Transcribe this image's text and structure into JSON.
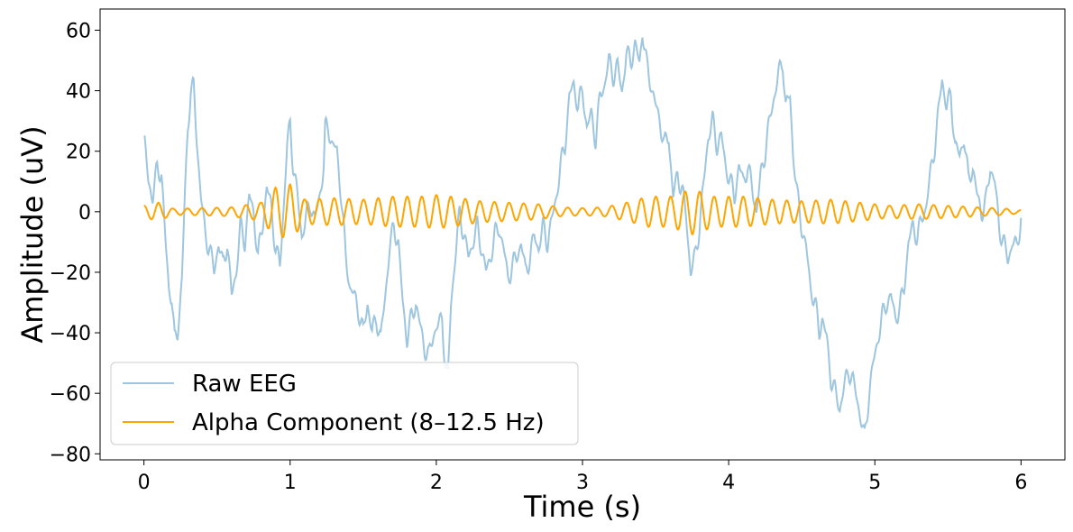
{
  "chart_data": {
    "type": "line",
    "xlabel": "Time (s)",
    "ylabel": "Amplitude (uV)",
    "xlim": [
      -0.3,
      6.3
    ],
    "ylim": [
      -82,
      67
    ],
    "xticks": [
      0,
      1,
      2,
      3,
      4,
      5,
      6
    ],
    "yticks": [
      -80,
      -60,
      -40,
      -20,
      0,
      20,
      40,
      60
    ],
    "xtick_labels": [
      "0",
      "1",
      "2",
      "3",
      "4",
      "5",
      "6"
    ],
    "ytick_labels": [
      "−80",
      "−60",
      "−40",
      "−20",
      "0",
      "20",
      "40",
      "60"
    ],
    "grid": false,
    "legend": {
      "position": "lower-left"
    },
    "series": [
      {
        "name": "Raw EEG",
        "color": "#9ec6df",
        "points": [
          [
            0.0,
            25
          ],
          [
            0.03,
            10
          ],
          [
            0.06,
            5
          ],
          [
            0.09,
            14
          ],
          [
            0.12,
            13
          ],
          [
            0.15,
            -12
          ],
          [
            0.17,
            -25
          ],
          [
            0.19,
            -28
          ],
          [
            0.21,
            -43
          ],
          [
            0.23,
            -40
          ],
          [
            0.26,
            -22
          ],
          [
            0.28,
            5
          ],
          [
            0.3,
            28
          ],
          [
            0.32,
            40
          ],
          [
            0.34,
            41
          ],
          [
            0.36,
            25
          ],
          [
            0.39,
            5
          ],
          [
            0.42,
            -8
          ],
          [
            0.45,
            -12
          ],
          [
            0.48,
            -20
          ],
          [
            0.51,
            -10
          ],
          [
            0.54,
            -18
          ],
          [
            0.57,
            -10
          ],
          [
            0.6,
            -28
          ],
          [
            0.63,
            -20
          ],
          [
            0.66,
            -5
          ],
          [
            0.69,
            -10
          ],
          [
            0.72,
            5
          ],
          [
            0.75,
            0
          ],
          [
            0.78,
            -15
          ],
          [
            0.81,
            -5
          ],
          [
            0.84,
            8
          ],
          [
            0.87,
            2
          ],
          [
            0.9,
            -12
          ],
          [
            0.93,
            -18
          ],
          [
            0.96,
            5
          ],
          [
            0.98,
            22
          ],
          [
            1.0,
            29
          ],
          [
            1.02,
            16
          ],
          [
            1.05,
            5
          ],
          [
            1.08,
            -8
          ],
          [
            1.11,
            -2
          ],
          [
            1.14,
            3
          ],
          [
            1.17,
            -3
          ],
          [
            1.2,
            5
          ],
          [
            1.23,
            15
          ],
          [
            1.24,
            27
          ],
          [
            1.26,
            28
          ],
          [
            1.29,
            22
          ],
          [
            1.32,
            20
          ],
          [
            1.35,
            5
          ],
          [
            1.38,
            -15
          ],
          [
            1.41,
            -25
          ],
          [
            1.44,
            -28
          ],
          [
            1.47,
            -33
          ],
          [
            1.5,
            -40
          ],
          [
            1.53,
            -30
          ],
          [
            1.56,
            -40
          ],
          [
            1.59,
            -35
          ],
          [
            1.62,
            -42
          ],
          [
            1.65,
            -28
          ],
          [
            1.68,
            -12
          ],
          [
            1.71,
            -5
          ],
          [
            1.74,
            -10
          ],
          [
            1.77,
            -30
          ],
          [
            1.8,
            -42
          ],
          [
            1.83,
            -35
          ],
          [
            1.86,
            -30
          ],
          [
            1.89,
            -38
          ],
          [
            1.92,
            -45
          ],
          [
            1.95,
            -48
          ],
          [
            1.98,
            -40
          ],
          [
            2.01,
            -38
          ],
          [
            2.04,
            -35
          ],
          [
            2.06,
            -50
          ],
          [
            2.08,
            -55
          ],
          [
            2.1,
            -30
          ],
          [
            2.13,
            -15
          ],
          [
            2.16,
            0
          ],
          [
            2.19,
            -8
          ],
          [
            2.22,
            -15
          ],
          [
            2.25,
            -10
          ],
          [
            2.28,
            -5
          ],
          [
            2.31,
            -12
          ],
          [
            2.34,
            -20
          ],
          [
            2.37,
            -15
          ],
          [
            2.4,
            -8
          ],
          [
            2.43,
            -5
          ],
          [
            2.46,
            -12
          ],
          [
            2.49,
            -22
          ],
          [
            2.52,
            -18
          ],
          [
            2.55,
            -15
          ],
          [
            2.58,
            -10
          ],
          [
            2.61,
            -20
          ],
          [
            2.64,
            -15
          ],
          [
            2.67,
            -8
          ],
          [
            2.7,
            -12
          ],
          [
            2.73,
            -5
          ],
          [
            2.76,
            -10
          ],
          [
            2.79,
            -3
          ],
          [
            2.82,
            5
          ],
          [
            2.85,
            15
          ],
          [
            2.88,
            22
          ],
          [
            2.91,
            38
          ],
          [
            2.94,
            42
          ],
          [
            2.97,
            35
          ],
          [
            3.0,
            40
          ],
          [
            3.03,
            28
          ],
          [
            3.06,
            32
          ],
          [
            3.09,
            24
          ],
          [
            3.12,
            38
          ],
          [
            3.15,
            42
          ],
          [
            3.18,
            50
          ],
          [
            3.21,
            45
          ],
          [
            3.24,
            48
          ],
          [
            3.27,
            40
          ],
          [
            3.3,
            52
          ],
          [
            3.33,
            50
          ],
          [
            3.36,
            55
          ],
          [
            3.39,
            49
          ],
          [
            3.41,
            60
          ],
          [
            3.44,
            48
          ],
          [
            3.47,
            42
          ],
          [
            3.5,
            35
          ],
          [
            3.53,
            30
          ],
          [
            3.56,
            22
          ],
          [
            3.59,
            25
          ],
          [
            3.62,
            5
          ],
          [
            3.65,
            12
          ],
          [
            3.68,
            8
          ],
          [
            3.71,
            -2
          ],
          [
            3.74,
            -20
          ],
          [
            3.77,
            -15
          ],
          [
            3.8,
            -5
          ],
          [
            3.83,
            10
          ],
          [
            3.86,
            25
          ],
          [
            3.89,
            30
          ],
          [
            3.92,
            22
          ],
          [
            3.95,
            25
          ],
          [
            3.98,
            15
          ],
          [
            4.01,
            10
          ],
          [
            4.04,
            5
          ],
          [
            4.07,
            15
          ],
          [
            4.1,
            10
          ],
          [
            4.13,
            15
          ],
          [
            4.16,
            8
          ],
          [
            4.19,
            0
          ],
          [
            4.22,
            12
          ],
          [
            4.25,
            20
          ],
          [
            4.28,
            30
          ],
          [
            4.31,
            38
          ],
          [
            4.34,
            45
          ],
          [
            4.37,
            50
          ],
          [
            4.39,
            35
          ],
          [
            4.42,
            38
          ],
          [
            4.44,
            20
          ],
          [
            4.47,
            5
          ],
          [
            4.5,
            -5
          ],
          [
            4.53,
            -12
          ],
          [
            4.56,
            -25
          ],
          [
            4.59,
            -30
          ],
          [
            4.62,
            -40
          ],
          [
            4.64,
            -35
          ],
          [
            4.67,
            -42
          ],
          [
            4.7,
            -55
          ],
          [
            4.73,
            -60
          ],
          [
            4.76,
            -65
          ],
          [
            4.79,
            -58
          ],
          [
            4.82,
            -52
          ],
          [
            4.85,
            -56
          ],
          [
            4.88,
            -62
          ],
          [
            4.91,
            -70
          ],
          [
            4.93,
            -75
          ],
          [
            4.96,
            -60
          ],
          [
            4.99,
            -50
          ],
          [
            5.02,
            -42
          ],
          [
            5.05,
            -35
          ],
          [
            5.08,
            -30
          ],
          [
            5.11,
            -28
          ],
          [
            5.14,
            -35
          ],
          [
            5.17,
            -32
          ],
          [
            5.2,
            -25
          ],
          [
            5.23,
            -10
          ],
          [
            5.26,
            -5
          ],
          [
            5.29,
            -8
          ],
          [
            5.32,
            -3
          ],
          [
            5.35,
            2
          ],
          [
            5.38,
            12
          ],
          [
            5.41,
            22
          ],
          [
            5.44,
            35
          ],
          [
            5.46,
            44
          ],
          [
            5.49,
            35
          ],
          [
            5.52,
            38
          ],
          [
            5.55,
            22
          ],
          [
            5.58,
            18
          ],
          [
            5.61,
            25
          ],
          [
            5.64,
            10
          ],
          [
            5.67,
            15
          ],
          [
            5.7,
            5
          ],
          [
            5.73,
            0
          ],
          [
            5.76,
            3
          ],
          [
            5.79,
            15
          ],
          [
            5.82,
            10
          ],
          [
            5.85,
            -5
          ],
          [
            5.88,
            -10
          ],
          [
            5.91,
            -16
          ],
          [
            5.94,
            -10
          ],
          [
            5.97,
            -12
          ],
          [
            6.0,
            -2
          ]
        ]
      },
      {
        "name": "Alpha Component (8–12.5 Hz)",
        "color": "#ffa500",
        "freq": 10,
        "envelope": [
          [
            0.0,
            2
          ],
          [
            0.1,
            3
          ],
          [
            0.2,
            1
          ],
          [
            0.4,
            1.2
          ],
          [
            0.6,
            1.5
          ],
          [
            0.8,
            3
          ],
          [
            0.9,
            8
          ],
          [
            1.0,
            9
          ],
          [
            1.1,
            4
          ],
          [
            1.3,
            4.5
          ],
          [
            1.5,
            4
          ],
          [
            1.7,
            5
          ],
          [
            1.9,
            5
          ],
          [
            2.0,
            5.5
          ],
          [
            2.1,
            5
          ],
          [
            2.3,
            3.5
          ],
          [
            2.5,
            3
          ],
          [
            2.7,
            2.5
          ],
          [
            2.85,
            1.5
          ],
          [
            3.0,
            1.2
          ],
          [
            3.15,
            1.5
          ],
          [
            3.3,
            3
          ],
          [
            3.45,
            5
          ],
          [
            3.6,
            5
          ],
          [
            3.75,
            7.5
          ],
          [
            3.9,
            5
          ],
          [
            4.1,
            5
          ],
          [
            4.3,
            4
          ],
          [
            4.5,
            3.5
          ],
          [
            4.7,
            4
          ],
          [
            4.9,
            3
          ],
          [
            5.1,
            2
          ],
          [
            5.3,
            2.5
          ],
          [
            5.5,
            2
          ],
          [
            5.7,
            1.5
          ],
          [
            5.9,
            1
          ],
          [
            6.0,
            0.5
          ]
        ]
      }
    ]
  }
}
